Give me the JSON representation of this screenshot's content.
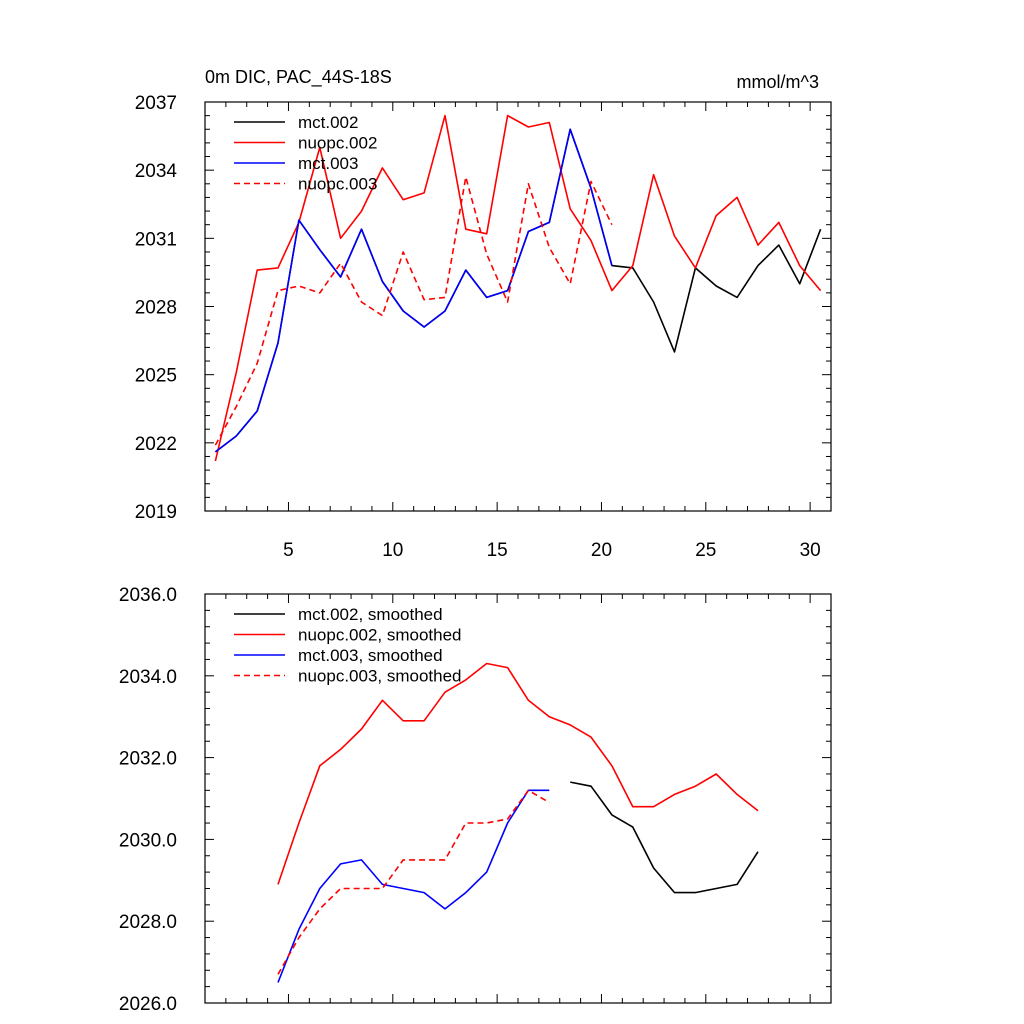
{
  "chart_data": [
    {
      "type": "line",
      "title": "0m DIC, PAC_44S-18S",
      "units": "mmol/m^3",
      "xlim": [
        1,
        31
      ],
      "ylim": [
        2019,
        2037
      ],
      "x_ticks": [
        5,
        10,
        15,
        20,
        25,
        30
      ],
      "y_ticks": [
        2019,
        2022,
        2025,
        2028,
        2031,
        2034,
        2037
      ],
      "y_tick_decimals": 0,
      "show_x_tick_labels": true,
      "legend_position": "top-left",
      "series": [
        {
          "name": "mct.002",
          "color": "#000000",
          "dash": false,
          "x": [
            1.5,
            2.5,
            3.5,
            4.5,
            5.5,
            6.5,
            7.5,
            8.5,
            9.5,
            10.5,
            11.5,
            12.5,
            13.5,
            14.5,
            15.5,
            16.5,
            17.5,
            18.5,
            19.5,
            20.5,
            21.5,
            22.5,
            23.5,
            24.5,
            25.5,
            26.5,
            27.5,
            28.5,
            29.5,
            30.5
          ],
          "y": [
            2021.6,
            2022.3,
            2023.4,
            2026.4,
            2031.8,
            2030.5,
            2029.3,
            2031.4,
            2029.1,
            2027.8,
            2027.1,
            2027.8,
            2029.6,
            2028.4,
            2028.7,
            2031.3,
            2031.7,
            2035.8,
            2033.2,
            2029.8,
            2029.7,
            2028.2,
            2026.0,
            2029.7,
            2028.9,
            2028.4,
            2029.8,
            2030.7,
            2029.0,
            2031.4
          ]
        },
        {
          "name": "nuopc.002",
          "color": "#ff0000",
          "dash": false,
          "x": [
            1.5,
            2.5,
            3.5,
            4.5,
            5.5,
            6.5,
            7.5,
            8.5,
            9.5,
            10.5,
            11.5,
            12.5,
            13.5,
            14.5,
            15.5,
            16.5,
            17.5,
            18.5,
            19.5,
            20.5,
            21.5,
            22.5,
            23.5,
            24.5,
            25.5,
            26.5,
            27.5,
            28.5,
            29.5,
            30.5
          ],
          "y": [
            2021.2,
            2025.1,
            2029.6,
            2029.7,
            2031.7,
            2035.0,
            2031.0,
            2032.2,
            2034.1,
            2032.7,
            2033.0,
            2036.4,
            2031.4,
            2031.2,
            2036.4,
            2035.9,
            2036.1,
            2032.3,
            2030.9,
            2028.7,
            2029.8,
            2033.8,
            2031.1,
            2029.7,
            2032.0,
            2032.8,
            2030.7,
            2031.7,
            2029.8,
            2028.7
          ]
        },
        {
          "name": "mct.003",
          "color": "#0000ff",
          "dash": false,
          "x": [
            1.5,
            2.5,
            3.5,
            4.5,
            5.5,
            6.5,
            7.5,
            8.5,
            9.5,
            10.5,
            11.5,
            12.5,
            13.5,
            14.5,
            15.5,
            16.5,
            17.5,
            18.5,
            19.5,
            20.5
          ],
          "y": [
            2021.6,
            2022.3,
            2023.4,
            2026.4,
            2031.8,
            2030.5,
            2029.3,
            2031.4,
            2029.1,
            2027.8,
            2027.1,
            2027.8,
            2029.6,
            2028.4,
            2028.7,
            2031.3,
            2031.7,
            2035.8,
            2033.2,
            2029.8
          ]
        },
        {
          "name": "nuopc.003",
          "color": "#ff0000",
          "dash": true,
          "x": [
            1.5,
            2.5,
            3.5,
            4.5,
            5.5,
            6.5,
            7.5,
            8.5,
            9.5,
            10.5,
            11.5,
            12.5,
            13.5,
            14.5,
            15.5,
            16.5,
            17.5,
            18.5,
            19.5,
            20.5
          ],
          "y": [
            2021.9,
            2023.6,
            2025.5,
            2028.7,
            2028.9,
            2028.6,
            2029.9,
            2028.2,
            2027.6,
            2030.4,
            2028.3,
            2028.4,
            2033.7,
            2030.3,
            2028.2,
            2033.4,
            2030.6,
            2029.0,
            2033.5,
            2031.6
          ]
        }
      ]
    },
    {
      "type": "line",
      "title": "",
      "units": "",
      "xlim": [
        1,
        31
      ],
      "ylim": [
        2026.0,
        2036.0
      ],
      "x_ticks": [
        5,
        10,
        15,
        20,
        25,
        30
      ],
      "y_ticks": [
        2026.0,
        2028.0,
        2030.0,
        2032.0,
        2034.0,
        2036.0
      ],
      "y_tick_decimals": 1,
      "show_x_tick_labels": false,
      "legend_position": "top-left",
      "series": [
        {
          "name": "mct.002, smoothed",
          "color": "#000000",
          "dash": false,
          "x": [
            18.5,
            19.5,
            20.5,
            21.5,
            22.5,
            23.5,
            24.5,
            25.5,
            26.5,
            27.5
          ],
          "y": [
            2031.4,
            2031.3,
            2030.6,
            2030.3,
            2029.3,
            2028.7,
            2028.7,
            2028.8,
            2028.9,
            2029.7
          ]
        },
        {
          "name": "nuopc.002, smoothed",
          "color": "#ff0000",
          "dash": false,
          "x": [
            4.5,
            5.5,
            6.5,
            7.5,
            8.5,
            9.5,
            10.5,
            11.5,
            12.5,
            13.5,
            14.5,
            15.5,
            16.5,
            17.5,
            18.5,
            19.5,
            20.5,
            21.5,
            22.5,
            23.5,
            24.5,
            25.5,
            26.5,
            27.5
          ],
          "y": [
            2028.9,
            2030.4,
            2031.8,
            2032.2,
            2032.7,
            2033.4,
            2032.9,
            2032.9,
            2033.6,
            2033.9,
            2034.3,
            2034.2,
            2033.4,
            2033.0,
            2032.8,
            2032.5,
            2031.8,
            2030.8,
            2030.8,
            2031.1,
            2031.3,
            2031.6,
            2031.1,
            2030.7
          ]
        },
        {
          "name": "mct.003, smoothed",
          "color": "#0000ff",
          "dash": false,
          "x": [
            4.5,
            5.5,
            6.5,
            7.5,
            8.5,
            9.5,
            10.5,
            11.5,
            12.5,
            13.5,
            14.5,
            15.5,
            16.5,
            17.5
          ],
          "y": [
            2026.5,
            2027.8,
            2028.8,
            2029.4,
            2029.5,
            2028.9,
            2028.8,
            2028.7,
            2028.3,
            2028.7,
            2029.2,
            2030.4,
            2031.2,
            2031.2
          ]
        },
        {
          "name": "nuopc.003, smoothed",
          "color": "#ff0000",
          "dash": true,
          "x": [
            4.5,
            5.5,
            6.5,
            7.5,
            8.5,
            9.5,
            10.5,
            11.5,
            12.5,
            13.5,
            14.5,
            15.5,
            16.5,
            17.5
          ],
          "y": [
            2026.7,
            2027.6,
            2028.3,
            2028.8,
            2028.8,
            2028.8,
            2029.5,
            2029.5,
            2029.5,
            2030.4,
            2030.4,
            2030.5,
            2031.2,
            2030.9
          ]
        }
      ]
    }
  ]
}
